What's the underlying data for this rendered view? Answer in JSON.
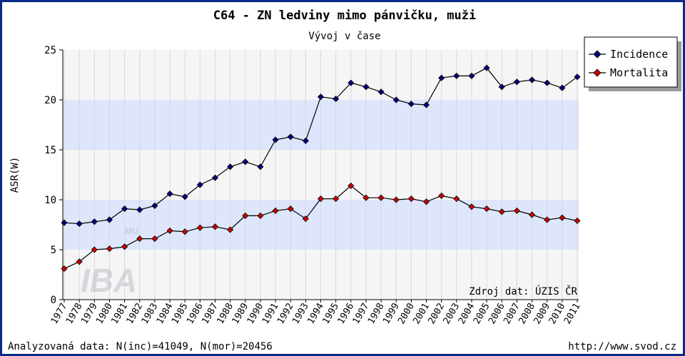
{
  "chart_data": {
    "type": "line",
    "title": "C64 - ZN ledviny mimo pánvičku, muži",
    "subtitle": "Vývoj v čase",
    "ylabel": "ASR(W)",
    "xlabel": "",
    "ylim": [
      0,
      25
    ],
    "yticks": [
      "0",
      "5",
      "10",
      "15",
      "20",
      "25"
    ],
    "categories": [
      "1977",
      "1978",
      "1979",
      "1980",
      "1981",
      "1982",
      "1983",
      "1984",
      "1985",
      "1986",
      "1987",
      "1988",
      "1989",
      "1990",
      "1991",
      "1992",
      "1993",
      "1994",
      "1995",
      "1996",
      "1997",
      "1998",
      "1999",
      "2000",
      "2001",
      "2002",
      "2003",
      "2004",
      "2005",
      "2006",
      "2007",
      "2008",
      "2009",
      "2010",
      "2011"
    ],
    "series": [
      {
        "name": "Incidence",
        "color": "#000080",
        "values": [
          7.7,
          7.6,
          7.8,
          8.0,
          9.1,
          9.0,
          9.4,
          10.6,
          10.3,
          11.5,
          12.2,
          13.3,
          13.8,
          13.3,
          16.0,
          16.3,
          15.9,
          20.3,
          20.1,
          21.7,
          21.3,
          20.8,
          20.0,
          19.6,
          19.5,
          22.2,
          22.4,
          22.4,
          23.2,
          21.3,
          21.8,
          22.0,
          21.7,
          21.2,
          22.3
        ]
      },
      {
        "name": "Mortalita",
        "color": "#cc0000",
        "values": [
          3.1,
          3.8,
          5.0,
          5.1,
          5.3,
          6.1,
          6.1,
          6.9,
          6.8,
          7.2,
          7.3,
          7.0,
          8.4,
          8.4,
          8.9,
          9.1,
          8.1,
          10.1,
          10.1,
          11.4,
          10.2,
          10.2,
          10.0,
          10.1,
          9.8,
          10.4,
          10.1,
          9.3,
          9.1,
          8.8,
          8.9,
          8.5,
          8.0,
          8.2,
          7.9
        ]
      }
    ],
    "grid": true,
    "legend": "top-right",
    "source": "Zdroj dat: ÚZIS ČR",
    "footer_left": "Analyzovaná data: N(inc)=41049, N(mor)=20456",
    "footer_right": "http://www.svod.cz",
    "watermark": "IBA"
  }
}
